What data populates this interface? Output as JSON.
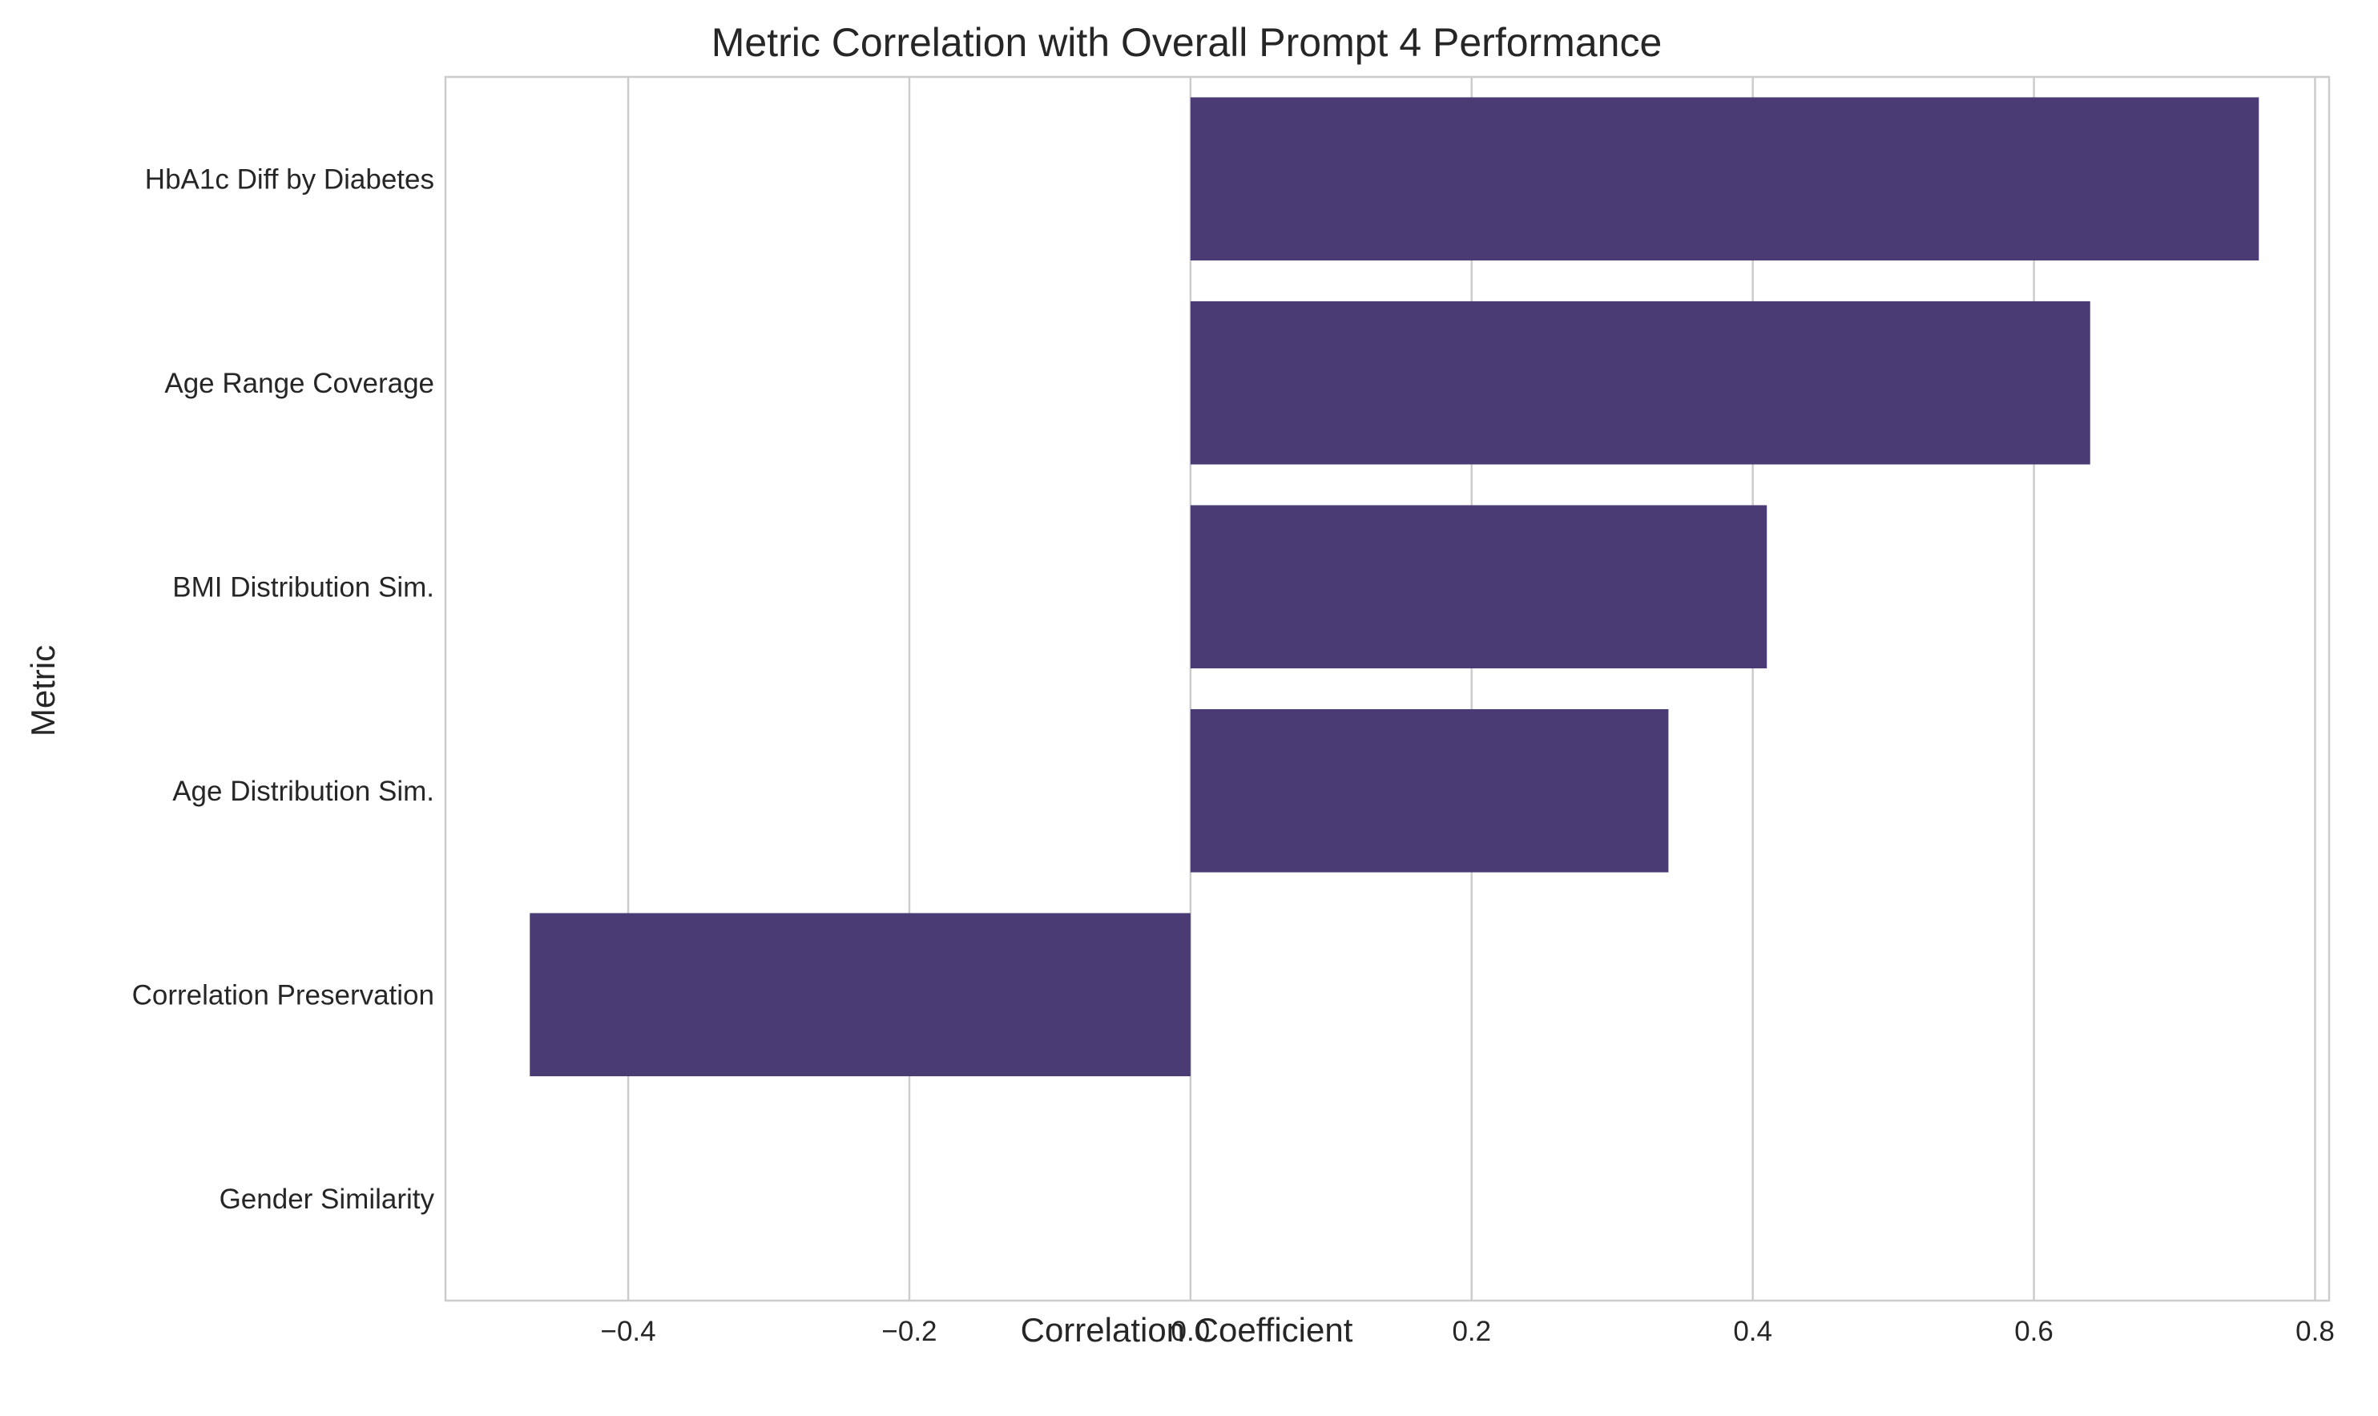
{
  "chart_data": {
    "type": "bar",
    "orientation": "horizontal",
    "title": "Metric Correlation with Overall Prompt 4 Performance",
    "xlabel": "Correlation Coefficient",
    "ylabel": "Metric",
    "categories": [
      "HbA1c Diff by Diabetes",
      "Age Range Coverage",
      "BMI Distribution Sim.",
      "Age Distribution Sim.",
      "Correlation Preservation",
      "Gender Similarity"
    ],
    "values": [
      0.76,
      0.64,
      0.41,
      0.34,
      -0.47,
      0.0
    ],
    "xlim": [
      -0.53,
      0.81
    ],
    "xticks": [
      -0.4,
      -0.2,
      0.0,
      0.2,
      0.4,
      0.6,
      0.8
    ],
    "xtick_labels": [
      "−0.4",
      "−0.2",
      "0.0",
      "0.2",
      "0.4",
      "0.6",
      "0.8"
    ],
    "grid": "vertical",
    "bar_color": "#4a3b74"
  }
}
